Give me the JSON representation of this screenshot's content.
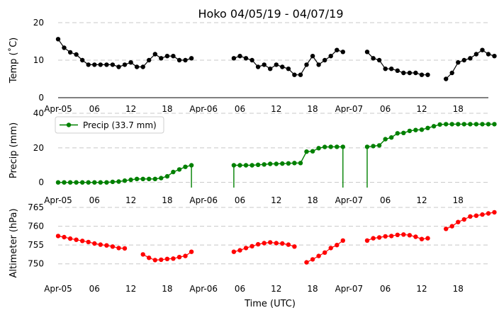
{
  "chart_data": {
    "type": "line",
    "title": "Hoko 04/05/19 - 04/07/19",
    "xlabel": "Time (UTC)",
    "x_range": [
      "Apr-05 00:00",
      "Apr-07 21:00"
    ],
    "x_step_hours": 3,
    "x_ticks": [
      {
        "hour": 0,
        "label": "Apr-05"
      },
      {
        "hour": 6,
        "label": "06"
      },
      {
        "hour": 12,
        "label": "12"
      },
      {
        "hour": 18,
        "label": "18"
      },
      {
        "hour": 24,
        "label": "Apr-06"
      },
      {
        "hour": 30,
        "label": "06"
      },
      {
        "hour": 36,
        "label": "12"
      },
      {
        "hour": 42,
        "label": "18"
      },
      {
        "hour": 48,
        "label": "Apr-07"
      },
      {
        "hour": 54,
        "label": "06"
      },
      {
        "hour": 60,
        "label": "12"
      },
      {
        "hour": 66,
        "label": "18"
      }
    ],
    "panels": [
      {
        "ylabel": "Temp (˚C)",
        "ylim": [
          0,
          20
        ],
        "yticks": [
          0,
          10,
          20
        ],
        "color": "#000000",
        "legend": "",
        "segments": [
          {
            "start_hour": 0,
            "values": [
              15.6,
              13.3,
              12.1,
              11.5,
              10.0,
              8.8,
              8.8,
              8.8,
              8.8,
              8.8,
              8.2,
              8.8,
              9.4,
              8.2,
              8.2,
              10.0,
              11.6,
              10.5,
              11.1,
              11.1,
              10.0,
              10.0,
              10.5
            ]
          },
          {
            "start_hour": 29,
            "values": [
              10.5,
              11.1,
              10.5,
              10.0,
              8.2,
              8.8,
              7.7,
              8.8,
              8.2,
              7.7,
              6.1,
              6.1,
              8.8,
              11.1,
              8.8,
              10.0,
              11.1,
              12.7,
              12.2
            ]
          },
          {
            "start_hour": 51,
            "values": [
              12.2,
              10.5,
              10.0,
              7.7,
              7.7,
              7.2,
              6.6,
              6.6,
              6.6,
              6.1,
              6.1
            ]
          },
          {
            "start_hour": 64,
            "values": [
              5.0,
              6.6,
              9.4,
              10.0,
              10.5,
              11.6,
              12.7,
              11.6,
              11.1
            ]
          }
        ]
      },
      {
        "ylabel": "Precip (mm)",
        "ylim": [
          -3,
          40
        ],
        "yticks": [
          0,
          20,
          40
        ],
        "color": "#008000",
        "legend": "Precip (33.7 mm)",
        "segments": [
          {
            "start_hour": 0,
            "values": [
              0.0,
              0.0,
              0.0,
              0.0,
              0.0,
              0.0,
              0.0,
              0.0,
              0.0,
              0.3,
              0.5,
              1.0,
              1.5,
              2.0,
              2.0,
              2.0,
              2.0,
              2.5,
              3.5,
              6.0,
              7.5,
              9.0,
              9.9
            ]
          },
          {
            "start_hour": 29,
            "values": [
              9.9,
              9.9,
              9.9,
              9.9,
              10.2,
              10.4,
              10.7,
              10.7,
              10.9,
              11.0,
              11.2,
              11.2,
              17.8,
              18.0,
              19.8,
              20.5,
              20.6,
              20.6,
              20.6
            ]
          },
          {
            "start_hour": 51,
            "values": [
              20.6,
              21.0,
              21.4,
              25.0,
              26.0,
              28.4,
              28.6,
              29.8,
              30.3,
              30.5,
              31.5,
              32.5,
              33.5,
              33.7,
              33.7,
              33.7,
              33.7,
              33.7,
              33.7,
              33.7,
              33.7,
              33.7
            ]
          }
        ]
      },
      {
        "ylabel": "Altimeter (hPa)",
        "ylim": [
          746,
          765
        ],
        "yticks": [
          750,
          755,
          760,
          765
        ],
        "color": "#ff0000",
        "legend": "",
        "segments": [
          {
            "start_hour": 0,
            "values": [
              757.4,
              757.1,
              756.7,
              756.4,
              756.1,
              755.8,
              755.4,
              755.1,
              754.9,
              754.6,
              754.2,
              754.1
            ]
          },
          {
            "start_hour": 14,
            "values": [
              752.5,
              751.6,
              751.0,
              751.1,
              751.3,
              751.4,
              751.8,
              752.1,
              753.2
            ]
          },
          {
            "start_hour": 29,
            "values": [
              753.2,
              753.6,
              754.2,
              754.7,
              755.2,
              755.5,
              755.7,
              755.5,
              755.4,
              755.1,
              754.6
            ]
          },
          {
            "start_hour": 41,
            "values": [
              750.4,
              751.2,
              752.1,
              753.0,
              754.2,
              755.0,
              756.2
            ]
          },
          {
            "start_hour": 51,
            "values": [
              756.2,
              756.8,
              757.0,
              757.3,
              757.4,
              757.7,
              757.8,
              757.6,
              757.2,
              756.6,
              756.8
            ]
          },
          {
            "start_hour": 64,
            "values": [
              759.3,
              760.0,
              761.1,
              761.8,
              762.6,
              762.8,
              763.1,
              763.4,
              763.7
            ]
          }
        ]
      }
    ]
  }
}
